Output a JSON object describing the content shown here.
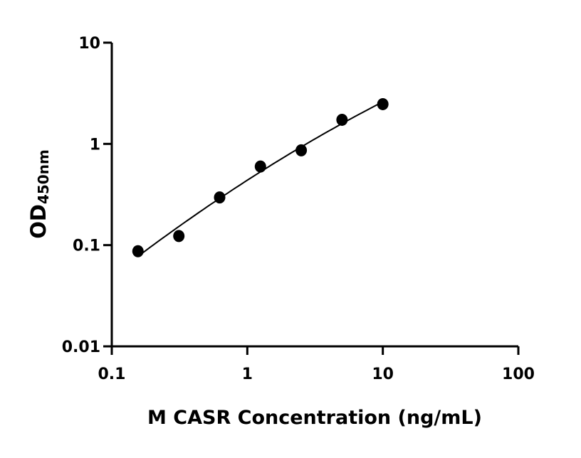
{
  "chart_data": {
    "type": "scatter",
    "title": "",
    "xlabel": "M CASR Concentration (ng/mL)",
    "ylabel": {
      "main": "OD",
      "sub": "450nm"
    },
    "x_scale": "log",
    "y_scale": "log",
    "xlim": [
      0.1,
      100
    ],
    "ylim": [
      0.01,
      10
    ],
    "x_ticks": [
      0.1,
      1,
      10,
      100
    ],
    "x_tick_labels": [
      "0.1",
      "1",
      "10",
      "100"
    ],
    "y_ticks": [
      0.01,
      0.1,
      1,
      10
    ],
    "y_tick_labels": [
      "0.01",
      "0.1",
      "1",
      "10"
    ],
    "grid": false,
    "fit_curve": true,
    "series": [
      {
        "x": [
          0.156,
          0.3125,
          0.625,
          1.25,
          2.5,
          5,
          10
        ],
        "y": [
          0.087,
          0.123,
          0.296,
          0.598,
          0.864,
          1.73,
          2.47
        ]
      }
    ],
    "color": "#000000"
  }
}
